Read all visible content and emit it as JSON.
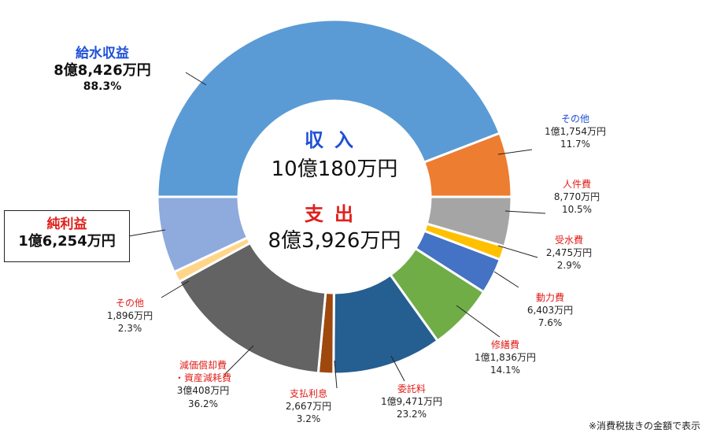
{
  "chart_data": {
    "type": "donut",
    "rings": [
      {
        "name": "収入",
        "total": "10億180万円",
        "slices": [
          {
            "label": "給水収益",
            "amount": "8億8,426万円",
            "percent": "88.3%",
            "value": 88.3,
            "color": "#5b9bd5"
          },
          {
            "label": "その他",
            "amount": "1億1,754万円",
            "percent": "11.7%",
            "value": 11.7,
            "color": "#ed7d31"
          }
        ]
      },
      {
        "name": "支出",
        "total": "8億3,926万円",
        "slices": [
          {
            "label": "人件費",
            "amount": "8,770万円",
            "percent": "10.5%",
            "value": 10.5,
            "color": "#a5a5a5"
          },
          {
            "label": "受水費",
            "amount": "2,475万円",
            "percent": "2.9%",
            "value": 2.9,
            "color": "#ffc000"
          },
          {
            "label": "動力費",
            "amount": "6,403万円",
            "percent": "7.6%",
            "value": 7.6,
            "color": "#4472c4"
          },
          {
            "label": "修繕費",
            "amount": "1億1,836万円",
            "percent": "14.1%",
            "value": 14.1,
            "color": "#70ad47"
          },
          {
            "label": "委託料",
            "amount": "1億9,471万円",
            "percent": "23.2%",
            "value": 23.2,
            "color": "#255e91"
          },
          {
            "label": "支払利息",
            "amount": "2,667万円",
            "percent": "3.2%",
            "value": 3.2,
            "color": "#9e480e"
          },
          {
            "label": "減価償却費・資産減耗費",
            "amount": "3億408万円",
            "percent": "36.2%",
            "value": 36.2,
            "color": "#636363"
          },
          {
            "label": "その他",
            "amount": "1,896万円",
            "percent": "2.3%",
            "value": 2.3,
            "color": "#ffd58a"
          },
          {
            "label": "純利益",
            "amount": "1億6,254万円",
            "value": 16.2,
            "color": "#8faadc"
          }
        ]
      }
    ]
  },
  "labels": {
    "income_title": "収入",
    "income_total": "10億180万円",
    "expense_title": "支出",
    "expense_total": "8億3,926万円",
    "water": {
      "title": "給水収益",
      "amount": "8億8,426万円",
      "percent": "88.3%"
    },
    "income_other": {
      "title": "その他",
      "amount": "1億1,754万円",
      "percent": "11.7%"
    },
    "personnel": {
      "title": "人件費",
      "amount": "8,770万円",
      "percent": "10.5%"
    },
    "received_water": {
      "title": "受水費",
      "amount": "2,475万円",
      "percent": "2.9%"
    },
    "power": {
      "title": "動力費",
      "amount": "6,403万円",
      "percent": "7.6%"
    },
    "repair": {
      "title": "修繕費",
      "amount": "1億1,836万円",
      "percent": "14.1%"
    },
    "commission": {
      "title": "委託料",
      "amount": "1億9,471万円",
      "percent": "23.2%"
    },
    "interest": {
      "title": "支払利息",
      "amount": "2,667万円",
      "percent": "3.2%"
    },
    "depreciation": {
      "title_1": "減価償却費",
      "title_2": "・資産減耗費",
      "amount": "3億408万円",
      "percent": "36.2%"
    },
    "expense_other": {
      "title": "その他",
      "amount": "1,896万円",
      "percent": "2.3%"
    },
    "net_profit": {
      "title": "純利益",
      "amount": "1億6,254万円"
    }
  },
  "note": "※消費税抜きの金額で表示"
}
